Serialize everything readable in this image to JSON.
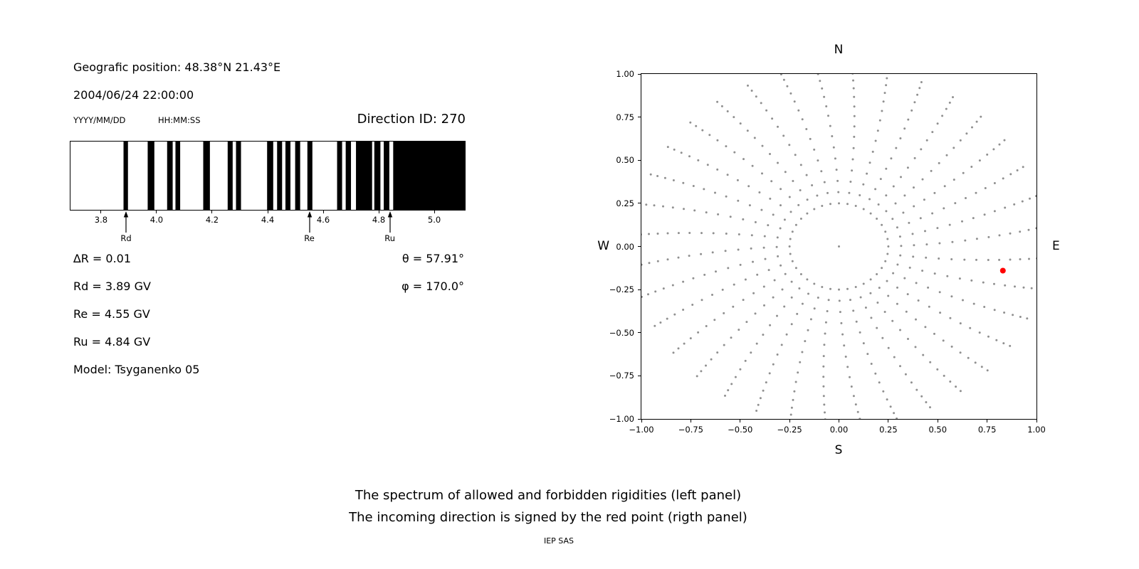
{
  "header": {
    "geo_position": "Geografic position: 48.38°N 21.43°E",
    "datetime": "2004/06/24 22:00:00",
    "date_format_label": "YYYY/MM/DD",
    "time_format_label": "HH:MM:SS",
    "direction_id": "Direction ID: 270"
  },
  "results": {
    "delta_r": "∆R = 0.01",
    "rd": "Rd = 3.89 GV",
    "re": "Re = 4.55 GV",
    "ru": "Ru = 4.84 GV",
    "model": "Model: Tsyganenko 05",
    "theta": "θ = 57.91°",
    "phi": "φ = 170.0°"
  },
  "captions": {
    "line1": "The spectrum of allowed and forbidden rigidities (left panel)",
    "line2": "The incoming direction is signed by the red point (rigth panel)",
    "credit": "IEP SAS"
  },
  "chart_data": [
    {
      "type": "bar",
      "subtype": "binary-spectrum-barcode",
      "panel": "left",
      "description": "Allowed (black) and forbidden (white) rigidity bands in GV",
      "xlim": [
        3.69,
        5.11
      ],
      "xtick_values": [
        3.8,
        4.0,
        4.2,
        4.4,
        4.6,
        4.8,
        5.0
      ],
      "xtick_labels": [
        "3.8",
        "4.0",
        "4.2",
        "4.4",
        "4.6",
        "4.8",
        "5.0"
      ],
      "bar_color": "#000000",
      "allowed_bands_gv": [
        [
          3.881,
          3.897
        ],
        [
          3.968,
          3.992
        ],
        [
          4.038,
          4.058
        ],
        [
          4.068,
          4.085
        ],
        [
          4.168,
          4.192
        ],
        [
          4.256,
          4.274
        ],
        [
          4.286,
          4.304
        ],
        [
          4.398,
          4.42
        ],
        [
          4.434,
          4.452
        ],
        [
          4.464,
          4.482
        ],
        [
          4.499,
          4.517
        ],
        [
          4.543,
          4.561
        ],
        [
          4.65,
          4.668
        ],
        [
          4.681,
          4.7
        ],
        [
          4.718,
          4.776
        ],
        [
          4.784,
          4.806
        ],
        [
          4.818,
          4.838
        ],
        [
          4.852,
          5.11
        ]
      ],
      "markers": [
        {
          "label": "Rd",
          "value_gv": 3.89
        },
        {
          "label": "Re",
          "value_gv": 4.55
        },
        {
          "label": "Ru",
          "value_gv": 4.84
        }
      ]
    },
    {
      "type": "scatter",
      "panel": "right",
      "description": "Incoming-direction map: gray dots form 36 radial spokes with an inner dotted ring; the red point marks the incoming direction",
      "compass": {
        "top": "N",
        "bottom": "S",
        "left": "W",
        "right": "E"
      },
      "xlim": [
        -1,
        1
      ],
      "ylim": [
        -1,
        1
      ],
      "tick_values": [
        -1,
        -0.75,
        -0.5,
        -0.25,
        0,
        0.25,
        0.5,
        0.75,
        1
      ],
      "tick_labels": [
        "−1.00",
        "−0.75",
        "−0.50",
        "−0.25",
        "0.00",
        "0.25",
        "0.50",
        "0.75",
        "1.00"
      ],
      "dot_color": "#909090",
      "red_color": "#ff0000",
      "center_dot": true,
      "spokes": {
        "count": 36,
        "start_angle_deg": 0,
        "curl_deg_per_unit_r": 8,
        "radii": [
          0.25,
          0.315,
          0.38,
          0.445,
          0.51,
          0.575,
          0.64,
          0.7,
          0.76,
          0.815,
          0.87,
          0.92,
          0.965,
          1.005,
          1.04
        ]
      },
      "red_point": {
        "x": 0.83,
        "y": -0.14
      }
    }
  ]
}
